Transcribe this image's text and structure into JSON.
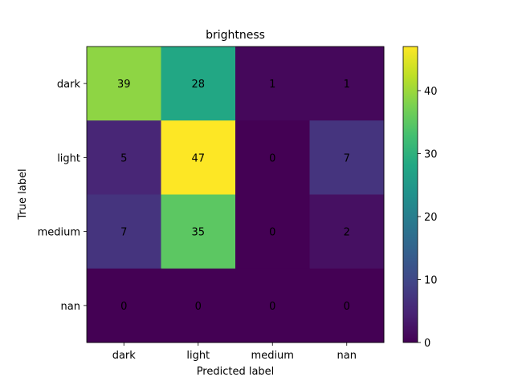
{
  "chart_data": {
    "type": "heatmap",
    "title": "brightness",
    "xlabel": "Predicted label",
    "ylabel": "True label",
    "x_categories": [
      "dark",
      "light",
      "medium",
      "nan"
    ],
    "y_categories": [
      "dark",
      "light",
      "medium",
      "nan"
    ],
    "values": [
      [
        39,
        28,
        1,
        1
      ],
      [
        5,
        47,
        0,
        7
      ],
      [
        7,
        35,
        0,
        2
      ],
      [
        0,
        0,
        0,
        0
      ]
    ],
    "colormap": "viridis",
    "colorbar": {
      "min": 0,
      "max": 47,
      "ticks": [
        0,
        10,
        20,
        30,
        40
      ]
    },
    "annotation_colors": {
      "on_dark": "#fde725",
      "on_light": "#440154"
    },
    "grid": false
  }
}
